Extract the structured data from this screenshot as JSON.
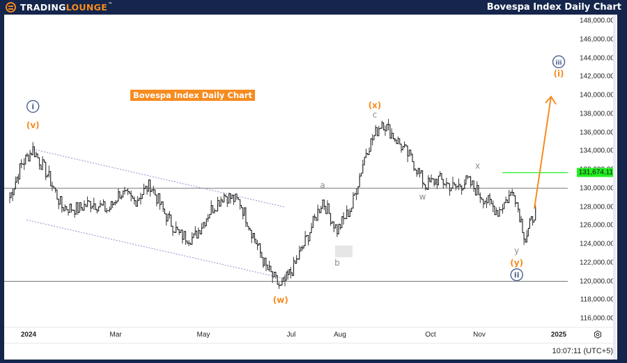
{
  "header": {
    "logo_part1": "TRADING",
    "logo_part2": "LOUNGE",
    "logo_tm": "™",
    "title": "Bovespa Index Daily Chart"
  },
  "colors": {
    "frame": "#15254b",
    "accent_orange": "#f68b1f",
    "wave_circle_blue": "#4a5e8f",
    "minor_label_gray": "#8c8c8c",
    "current_price_green": "#22ee22",
    "channel_dotted": "#8d8fd0",
    "price_line": "#1a1a1a"
  },
  "chart_data": {
    "type": "line",
    "title": "Bovespa Index Daily Chart",
    "subtitle": "",
    "xlabel": "",
    "ylabel": "",
    "ylim": [
      115000,
      149000
    ],
    "grid": false,
    "legend": "none",
    "x_ticks": [
      "2024",
      "Mar",
      "May",
      "Jul",
      "Aug",
      "Oct",
      "Nov",
      "2025"
    ],
    "y_ticks": [
      "148,000.00",
      "146,000.00",
      "144,000.00",
      "142,000.00",
      "140,000.00",
      "138,000.00",
      "136,000.00",
      "134,000.00",
      "132,000.00",
      "130,000.00",
      "128,000.00",
      "126,000.00",
      "124,000.00",
      "122,000.00",
      "120,000.00",
      "118,000.00",
      "116,000.00"
    ],
    "current_price": "131,674.11",
    "horizontal_lines": [
      130000,
      120000
    ],
    "series": [
      {
        "name": "Bovespa daily close (approx.)",
        "x": [
          "2023-12-20",
          "2023-12-28",
          "2024-01-05",
          "2024-01-15",
          "2024-01-25",
          "2024-02-05",
          "2024-02-15",
          "2024-02-26",
          "2024-03-05",
          "2024-03-15",
          "2024-03-26",
          "2024-04-05",
          "2024-04-15",
          "2024-04-25",
          "2024-05-06",
          "2024-05-16",
          "2024-05-27",
          "2024-06-05",
          "2024-06-14",
          "2024-06-24",
          "2024-07-03",
          "2024-07-12",
          "2024-07-23",
          "2024-08-02",
          "2024-08-12",
          "2024-08-22",
          "2024-09-02",
          "2024-09-12",
          "2024-09-23",
          "2024-10-02",
          "2024-10-11",
          "2024-10-22",
          "2024-10-31",
          "2024-11-11",
          "2024-11-21",
          "2024-12-02",
          "2024-12-10",
          "2024-12-17"
        ],
        "values": [
          129000,
          132500,
          134200,
          131500,
          128000,
          127800,
          128500,
          127600,
          129500,
          128600,
          130400,
          127300,
          125000,
          124600,
          127500,
          129300,
          128500,
          125000,
          121500,
          119300,
          121500,
          124600,
          128700,
          125500,
          128000,
          134000,
          137200,
          135200,
          133000,
          130300,
          131000,
          130000,
          130800,
          129000,
          127500,
          129800,
          124500,
          127800
        ]
      }
    ],
    "wave_labels": [
      {
        "label": "i",
        "style": "circled-blue",
        "date": "2024-01-05",
        "price": 138800
      },
      {
        "label": "(v)",
        "style": "orange",
        "date": "2024-01-05",
        "price": 136800
      },
      {
        "label": "(w)",
        "style": "orange",
        "date": "2024-06-24",
        "price": 118000
      },
      {
        "label": "a",
        "style": "gray",
        "date": "2024-07-23",
        "price": 130300
      },
      {
        "label": "b",
        "style": "gray",
        "date": "2024-08-02",
        "price": 122000
      },
      {
        "label": "(x)",
        "style": "orange",
        "date": "2024-08-28",
        "price": 138900
      },
      {
        "label": "c",
        "style": "gray",
        "date": "2024-08-28",
        "price": 137900
      },
      {
        "label": "w",
        "style": "gray",
        "date": "2024-09-30",
        "price": 129100
      },
      {
        "label": "x",
        "style": "gray",
        "date": "2024-11-07",
        "price": 132400
      },
      {
        "label": "y",
        "style": "gray",
        "date": "2024-12-04",
        "price": 123300
      },
      {
        "label": "(y)",
        "style": "orange",
        "date": "2024-12-04",
        "price": 122000
      },
      {
        "label": "ii",
        "style": "circled-blue",
        "date": "2024-12-04",
        "price": 120700
      },
      {
        "label": "iii",
        "style": "circled-blue",
        "date": "2025-01-02",
        "price": 143600
      },
      {
        "label": "(i)",
        "style": "orange",
        "date": "2025-01-02",
        "price": 142300
      }
    ],
    "annotations": [
      {
        "type": "arrow",
        "color": "orange",
        "from_price": 127800,
        "to_price": 140000,
        "note": "projected wave (i) of iii up"
      },
      {
        "type": "channel",
        "style": "dotted",
        "description": "descending channel from (v) high to (w) low"
      },
      {
        "type": "box",
        "description": "gray shaded box at wave b low"
      }
    ]
  },
  "overlay": {
    "chart_label": "Bovespa Index Daily Chart"
  },
  "time_axis": {
    "labels": [
      "2024",
      "Mar",
      "May",
      "Jul",
      "Aug",
      "Oct",
      "Nov",
      "2025"
    ],
    "settings_icon": "gear-icon"
  },
  "footer": {
    "clock": "10:07:11 (UTC+5)"
  }
}
